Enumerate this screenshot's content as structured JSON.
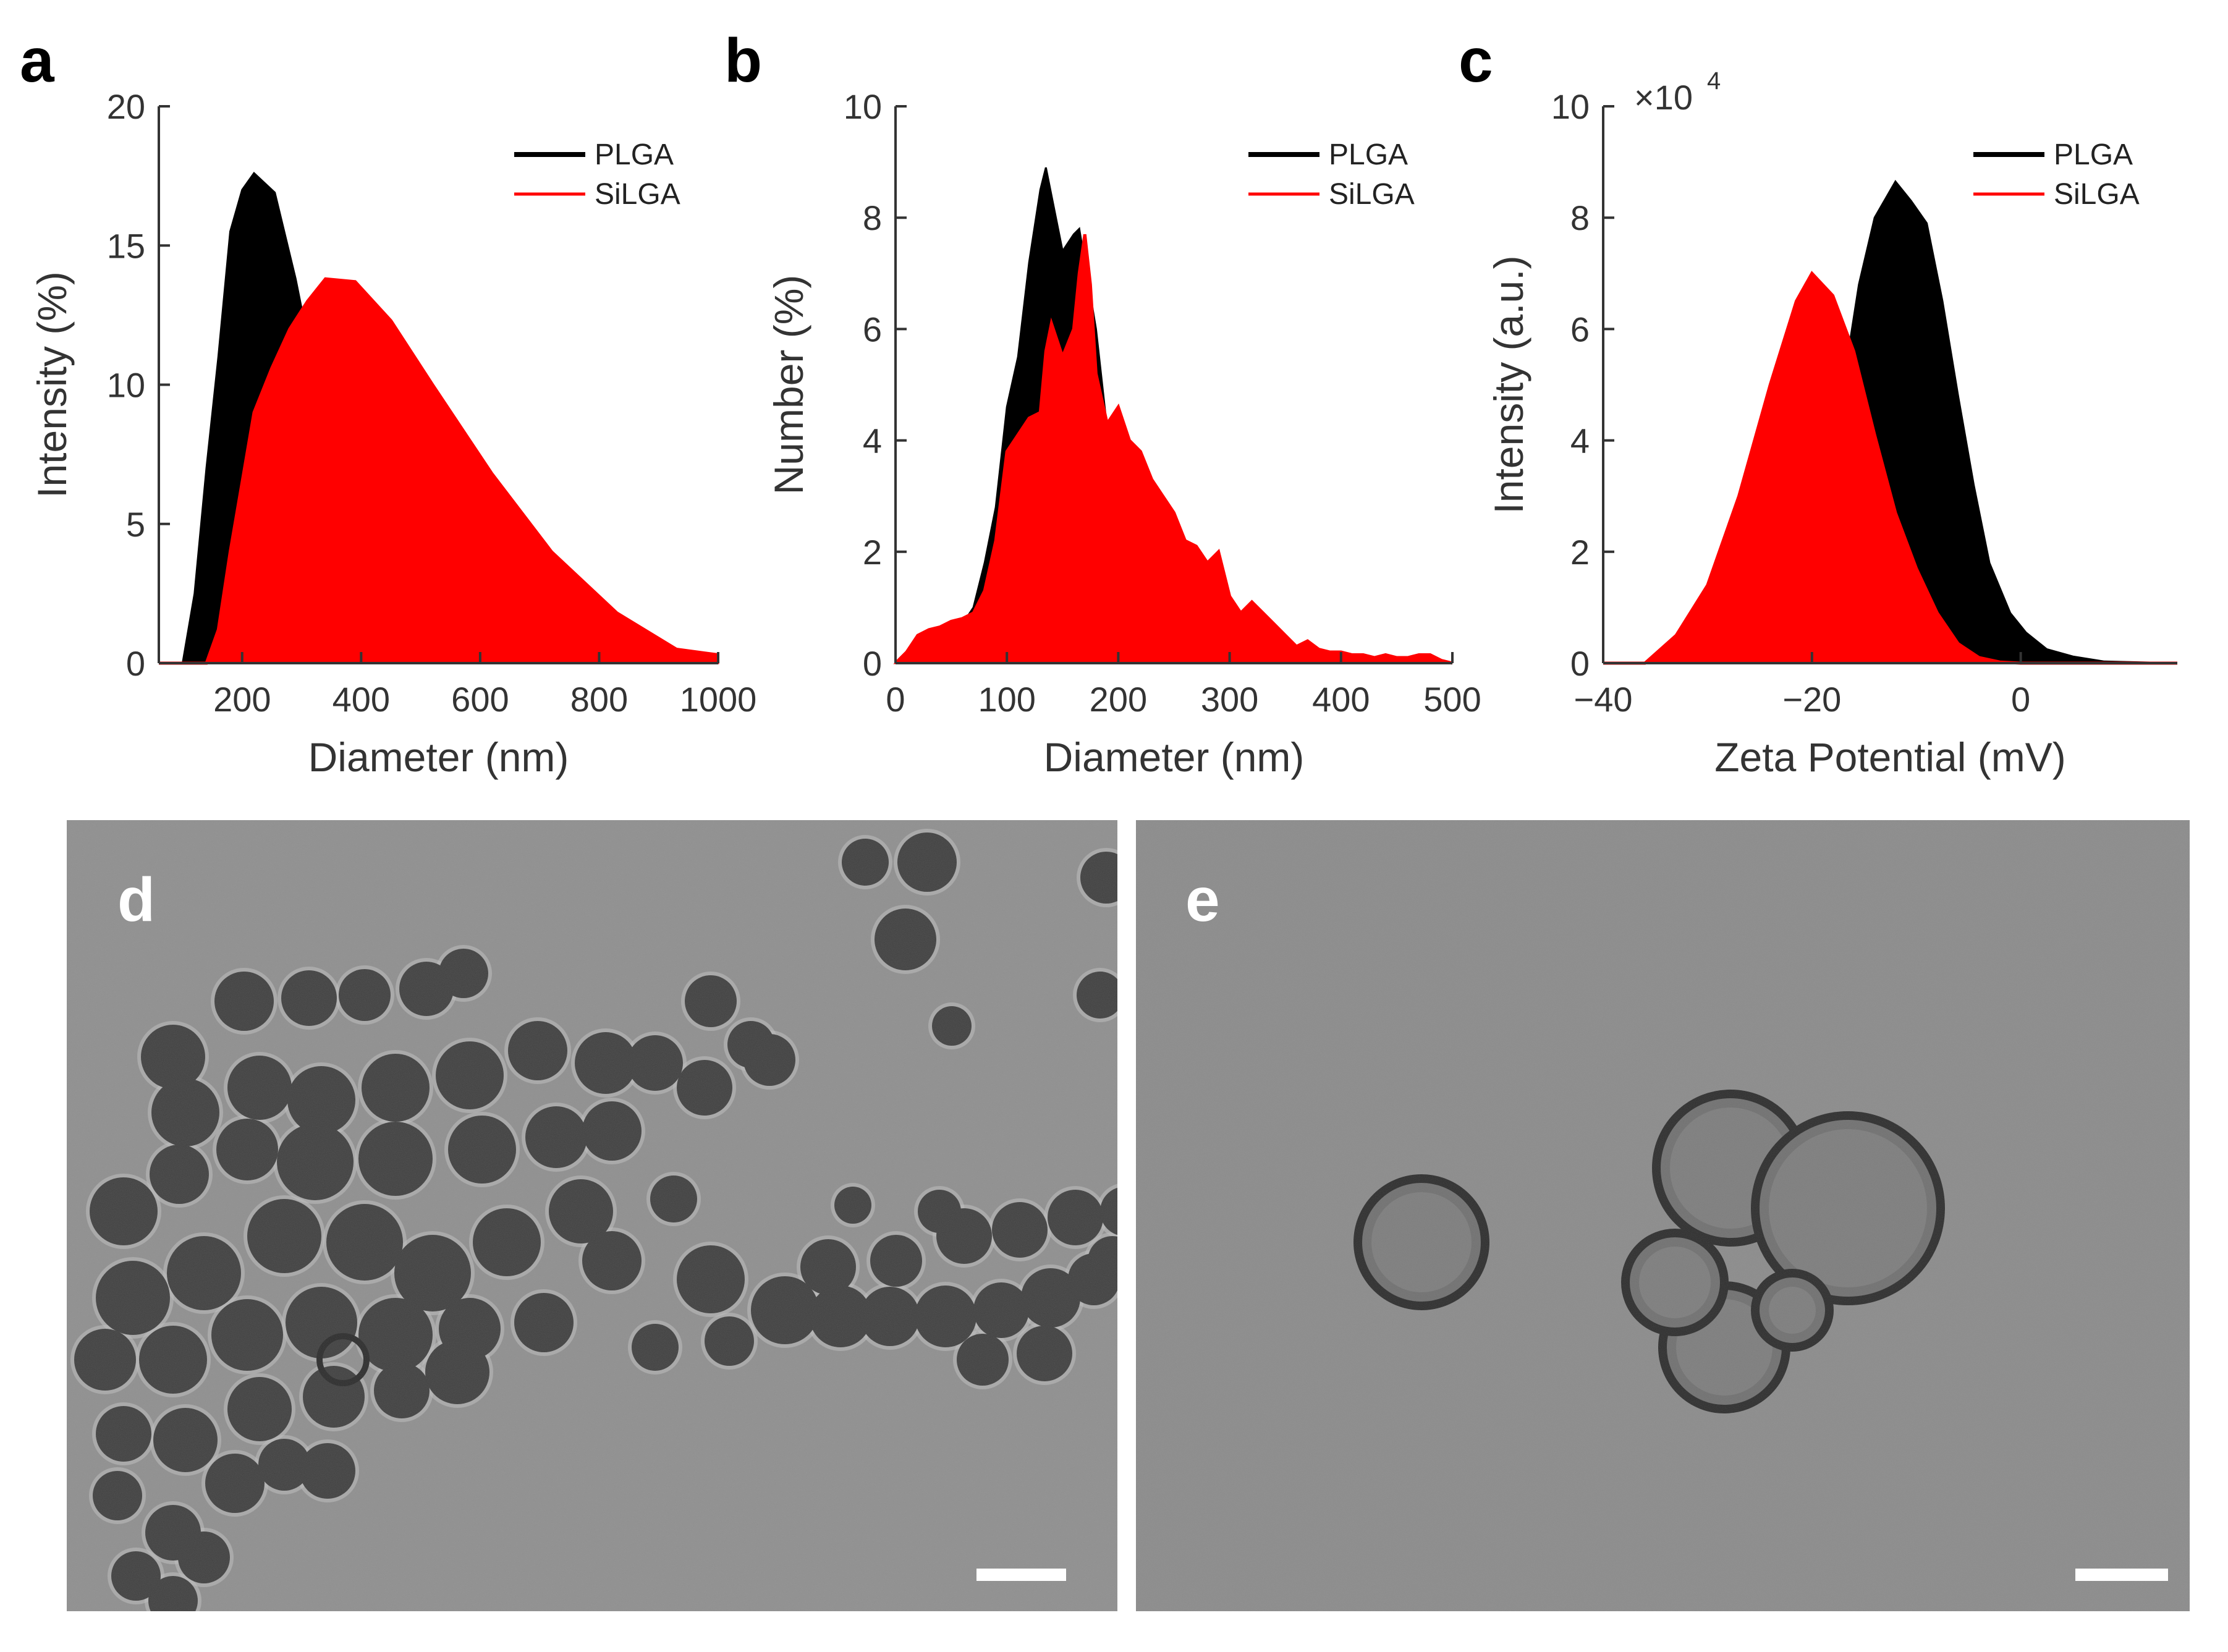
{
  "colors": {
    "plga": "#000000",
    "silga": "#ff0000",
    "tem_background": "#8f8f8f",
    "tem_particle": "#3b3b3b"
  },
  "panels": [
    {
      "label": "a"
    },
    {
      "label": "b"
    },
    {
      "label": "c"
    },
    {
      "label": "d"
    },
    {
      "label": "e"
    }
  ],
  "chart_data": [
    {
      "panel": "a",
      "type": "area",
      "xlabel": "Diameter (nm)",
      "ylabel": "Intensity (%)",
      "xlim": [
        60,
        1000
      ],
      "ylim": [
        0,
        20
      ],
      "xticks": [
        200,
        400,
        600,
        800,
        1000
      ],
      "yticks": [
        0,
        5,
        10,
        15,
        20
      ],
      "legend": "top-right",
      "series": [
        {
          "name": "PLGA",
          "color": "#000000",
          "x": [
            60,
            100,
            120,
            140,
            160,
            180,
            200,
            220,
            255,
            290,
            320,
            350,
            400,
            460,
            530,
            600,
            1000
          ],
          "y": [
            0,
            0,
            2.5,
            7,
            11,
            15.5,
            17,
            17.6,
            16.9,
            13.8,
            10.6,
            8.2,
            5.2,
            1.7,
            0.1,
            0,
            0
          ]
        },
        {
          "name": "SiLGA",
          "color": "#ff0000",
          "x": [
            60,
            140,
            160,
            180,
            200,
            220,
            250,
            280,
            310,
            340,
            390,
            450,
            520,
            620,
            720,
            830,
            930,
            1000
          ],
          "y": [
            0,
            0,
            1.2,
            4,
            6.5,
            9,
            10.6,
            12,
            13,
            13.8,
            13.7,
            12.3,
            10,
            6.8,
            4,
            1.8,
            0.5,
            0.3
          ]
        }
      ]
    },
    {
      "panel": "b",
      "type": "area",
      "xlabel": "Diameter (nm)",
      "ylabel": "Number (%)",
      "xlim": [
        0,
        500
      ],
      "ylim": [
        0,
        10
      ],
      "xticks": [
        0,
        100,
        200,
        300,
        400,
        500
      ],
      "yticks": [
        0,
        2,
        4,
        6,
        8,
        10
      ],
      "legend": "top-right",
      "series": [
        {
          "name": "PLGA",
          "color": "#000000",
          "x": [
            0,
            10,
            20,
            30,
            40,
            50,
            60,
            70,
            80,
            90,
            100,
            110,
            120,
            130,
            135,
            140,
            150,
            160,
            165,
            170,
            180,
            190,
            200,
            210,
            220,
            230,
            240,
            250,
            260,
            270,
            280,
            290,
            300,
            310,
            320,
            330,
            340,
            350,
            360,
            370,
            380,
            390,
            400,
            420,
            440,
            460,
            480,
            500
          ],
          "y": [
            0,
            0.1,
            0.3,
            0.5,
            0.55,
            0.6,
            0.7,
            1.0,
            1.8,
            2.8,
            4.6,
            5.5,
            7.2,
            8.5,
            8.9,
            8.4,
            7.4,
            7.7,
            7.8,
            7.2,
            6.0,
            4.2,
            4.0,
            3.2,
            2.5,
            2.3,
            2.0,
            1.6,
            1.5,
            1.0,
            0.8,
            0.5,
            0.7,
            0.4,
            0.5,
            0.3,
            0.3,
            0.25,
            0.2,
            0.1,
            0.15,
            0.1,
            0.05,
            0.05,
            0.02,
            0.02,
            0,
            0
          ]
        },
        {
          "name": "SiLGA",
          "color": "#ff0000",
          "x": [
            0,
            10,
            20,
            30,
            40,
            50,
            60,
            70,
            80,
            90,
            100,
            110,
            120,
            130,
            135,
            140,
            150,
            160,
            165,
            170,
            175,
            180,
            190,
            200,
            210,
            220,
            230,
            240,
            250,
            260,
            270,
            280,
            290,
            300,
            310,
            320,
            330,
            340,
            350,
            360,
            370,
            380,
            390,
            400,
            410,
            420,
            430,
            440,
            450,
            460,
            470,
            480,
            490,
            500
          ],
          "y": [
            0,
            0.2,
            0.5,
            0.6,
            0.65,
            0.75,
            0.8,
            0.9,
            1.3,
            2.2,
            3.8,
            4.1,
            4.4,
            4.5,
            5.6,
            6.1,
            5.5,
            6.0,
            7.0,
            7.7,
            6.8,
            5.2,
            4.3,
            4.6,
            4.0,
            3.8,
            3.3,
            3.0,
            2.7,
            2.2,
            2.1,
            1.8,
            2.0,
            1.2,
            0.9,
            1.1,
            0.9,
            0.7,
            0.5,
            0.3,
            0.4,
            0.25,
            0.2,
            0.2,
            0.15,
            0.15,
            0.1,
            0.15,
            0.1,
            0.1,
            0.15,
            0.15,
            0.05,
            0
          ]
        }
      ]
    },
    {
      "panel": "c",
      "type": "area",
      "xlabel": "Zeta Potential (mV)",
      "ylabel": "Intensity (a.u.)",
      "y_multiplier": "×10",
      "y_multiplier_exp": "4",
      "xlim": [
        -40,
        15
      ],
      "ylim": [
        0,
        100000
      ],
      "xticks": [
        -40,
        -20,
        0
      ],
      "xticklabels": [
        "−40",
        "−20",
        "0"
      ],
      "yticks": [
        0,
        20000,
        40000,
        60000,
        80000,
        100000
      ],
      "yticklabels": [
        "0",
        "2",
        "4",
        "6",
        "8",
        "10"
      ],
      "legend": "top-right",
      "series": [
        {
          "name": "PLGA",
          "color": "#000000",
          "x": [
            -40,
            -30,
            -27,
            -24,
            -21,
            -19,
            -17,
            -15.5,
            -14,
            -12,
            -10.5,
            -9,
            -7.5,
            -6,
            -4.5,
            -3,
            -1,
            0.5,
            2.5,
            5,
            8,
            15
          ],
          "y": [
            0,
            0,
            1000,
            3500,
            10000,
            25000,
            50000,
            68000,
            80000,
            86500,
            83000,
            79000,
            65000,
            48000,
            32000,
            18000,
            9000,
            5500,
            2500,
            1200,
            300,
            0
          ]
        },
        {
          "name": "SiLGA",
          "color": "#ff0000",
          "x": [
            -40,
            -36,
            -33,
            -30,
            -27,
            -24,
            -21.5,
            -20,
            -18,
            -16,
            -14,
            -12,
            -10,
            -8,
            -6,
            -4,
            -2,
            0,
            15
          ],
          "y": [
            0,
            0,
            5000,
            14000,
            30000,
            50000,
            65000,
            70000,
            66000,
            56000,
            41000,
            27000,
            17000,
            9000,
            3500,
            1000,
            200,
            0,
            0
          ]
        }
      ]
    }
  ]
}
